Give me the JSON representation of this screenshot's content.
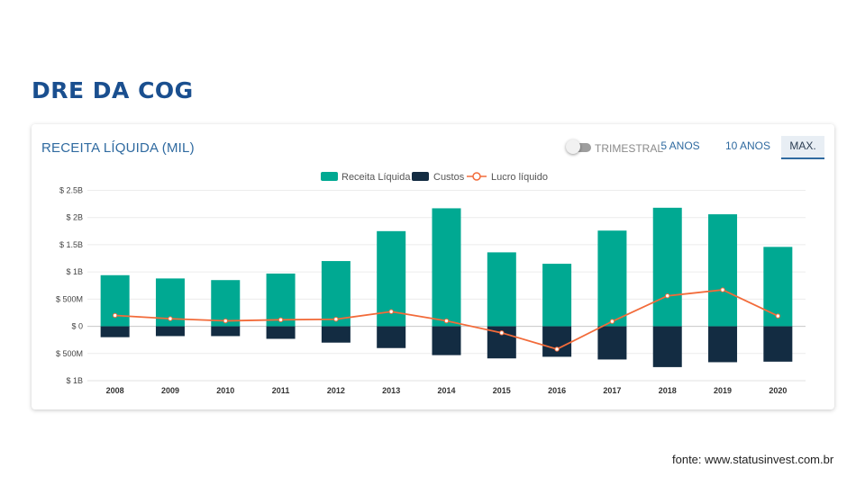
{
  "page": {
    "title": "DRE DA COG",
    "source": "fonte: www.statusinvest.com.br"
  },
  "card": {
    "title": "RECEITA LÍQUIDA (MIL)",
    "toggle_label": "TRIMESTRAL",
    "periods": [
      {
        "label": "5 ANOS"
      },
      {
        "label": "10 ANOS"
      },
      {
        "label": "MAX.",
        "active": true
      }
    ]
  },
  "colors": {
    "receita": "#00a992",
    "custos": "#132c42",
    "lucro": "#f26b3a",
    "title": "#1a4f8f",
    "accent": "#2f6aa0"
  },
  "chart_data": {
    "type": "bar",
    "categories": [
      "2008",
      "2009",
      "2010",
      "2011",
      "2012",
      "2013",
      "2014",
      "2015",
      "2016",
      "2017",
      "2018",
      "2019",
      "2020"
    ],
    "series": [
      {
        "name": "Receita Líquida",
        "type": "bar",
        "values": [
          0.94,
          0.88,
          0.85,
          0.97,
          1.2,
          1.75,
          2.17,
          1.36,
          1.15,
          1.76,
          2.18,
          2.06,
          1.46
        ]
      },
      {
        "name": "Custos",
        "type": "bar",
        "values": [
          -0.2,
          -0.18,
          -0.18,
          -0.23,
          -0.3,
          -0.4,
          -0.53,
          -0.59,
          -0.56,
          -0.61,
          -0.75,
          -0.66,
          -0.65
        ]
      },
      {
        "name": "Lucro líquido",
        "type": "line",
        "values": [
          0.2,
          0.14,
          0.1,
          0.12,
          0.13,
          0.27,
          0.1,
          -0.12,
          -0.42,
          0.09,
          0.56,
          0.67,
          0.19
        ]
      }
    ],
    "unit": "billions (B)",
    "yticks": [
      {
        "value": 2.5,
        "label": "$ 2.5B"
      },
      {
        "value": 2.0,
        "label": "$ 2B"
      },
      {
        "value": 1.5,
        "label": "$ 1.5B"
      },
      {
        "value": 1.0,
        "label": "$ 1B"
      },
      {
        "value": 0.5,
        "label": "$ 500M"
      },
      {
        "value": 0,
        "label": "$ 0"
      },
      {
        "value": -0.5,
        "label": "$ 500M"
      },
      {
        "value": -1.0,
        "label": "$ 1B"
      }
    ],
    "ylim": [
      -1.0,
      2.5
    ],
    "legend_position": "top-center",
    "grid": true
  }
}
